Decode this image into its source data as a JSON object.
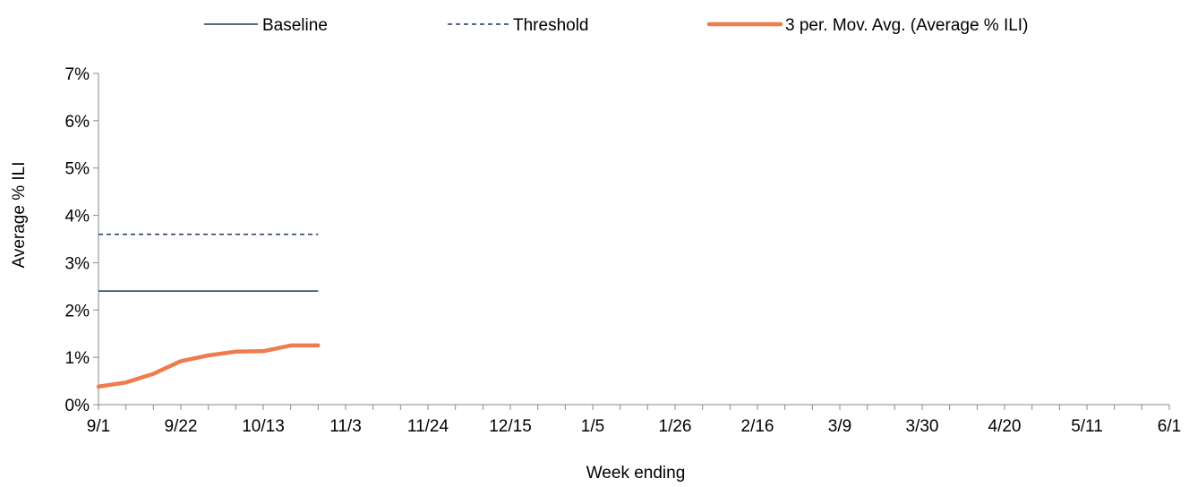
{
  "chart_data": {
    "type": "line",
    "title": "",
    "xlabel": "Week ending",
    "ylabel": "Average % ILI",
    "x_tick_labels": [
      "9/1",
      "9/22",
      "10/13",
      "11/3",
      "11/24",
      "12/15",
      "1/5",
      "1/26",
      "2/16",
      "3/9",
      "3/30",
      "4/20",
      "5/11",
      "6/1"
    ],
    "x_unit": "week",
    "x_range_weeks": [
      0,
      39
    ],
    "y_tick_labels": [
      "0%",
      "1%",
      "2%",
      "3%",
      "4%",
      "5%",
      "6%",
      "7%"
    ],
    "ylim": [
      0,
      7
    ],
    "grid": false,
    "legend_position": "top",
    "series": [
      {
        "name": "Baseline",
        "style": "solid",
        "color": "#1f3864",
        "x": [
          "9/1",
          "10/27"
        ],
        "values": [
          2.4,
          2.4
        ]
      },
      {
        "name": "Threshold",
        "style": "dashed",
        "color": "#1f3864",
        "x": [
          "9/1",
          "10/27"
        ],
        "values": [
          3.6,
          3.6
        ]
      },
      {
        "name": "3 per. Mov. Avg. (Average % ILI)",
        "style": "solid-thick",
        "color": "#ed7d4d",
        "x": [
          "9/1",
          "9/8",
          "9/15",
          "9/22",
          "9/29",
          "10/6",
          "10/13",
          "10/20",
          "10/27"
        ],
        "values": [
          0.38,
          0.47,
          0.65,
          0.92,
          1.04,
          1.12,
          1.13,
          1.25,
          1.25
        ]
      }
    ]
  }
}
